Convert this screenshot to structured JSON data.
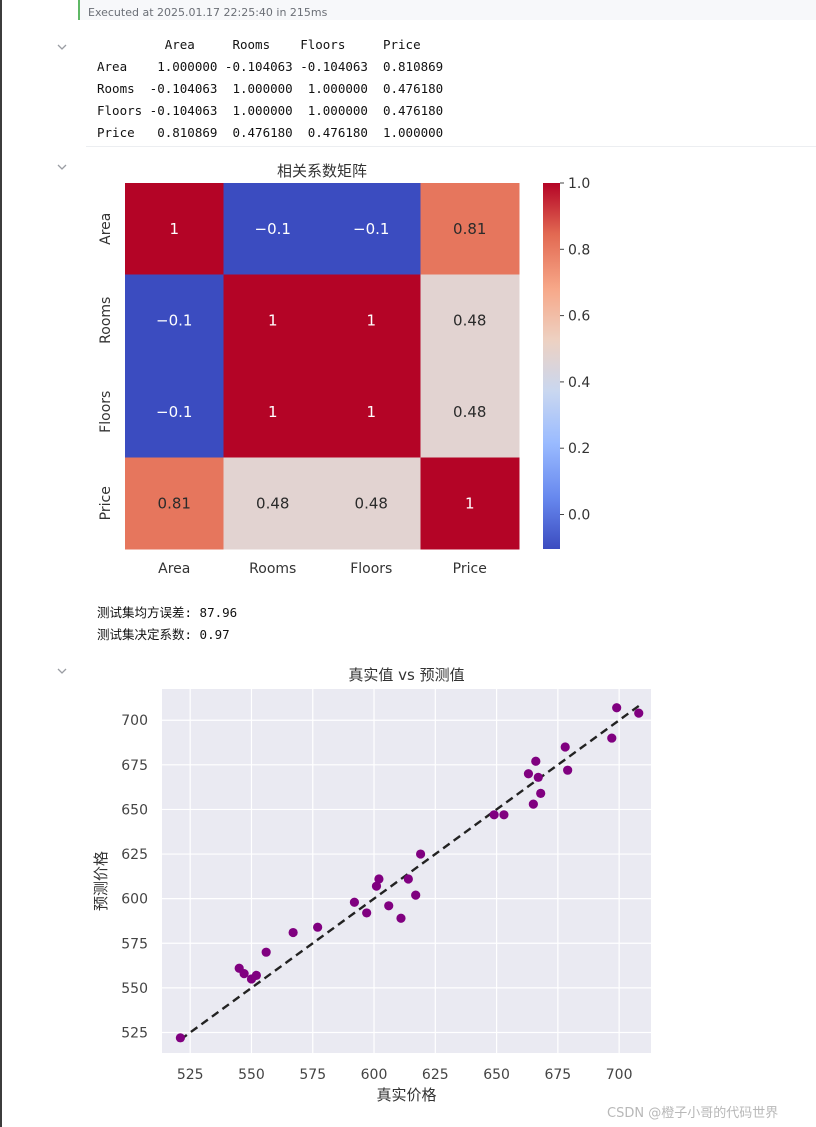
{
  "exec": {
    "text": "Executed at 2025.01.17 22:25:40 in 215ms"
  },
  "dataframe": {
    "header": "         Area     Rooms    Floors     Price",
    "rows": [
      "Area    1.000000 -0.104063 -0.104063  0.810869",
      "Rooms  -0.104063  1.000000  1.000000  0.476180",
      "Floors -0.104063  1.000000  1.000000  0.476180",
      "Price   0.810869  0.476180  0.476180  1.000000"
    ]
  },
  "metrics": {
    "mse": "测试集均方误差: 87.96",
    "r2": "测试集决定系数: 0.97"
  },
  "watermark": "CSDN @橙子小哥的代码世界",
  "colors": {
    "exec_accent": "#5fb865",
    "point": "#800080",
    "plot_bg": "#eaeaf2"
  },
  "chart_data": [
    {
      "type": "heatmap",
      "title": "相关系数矩阵",
      "row_labels": [
        "Area",
        "Rooms",
        "Floors",
        "Price"
      ],
      "col_labels": [
        "Area",
        "Rooms",
        "Floors",
        "Price"
      ],
      "values": [
        [
          1.0,
          -0.104063,
          -0.104063,
          0.810869
        ],
        [
          -0.104063,
          1.0,
          1.0,
          0.47618
        ],
        [
          -0.104063,
          1.0,
          1.0,
          0.47618
        ],
        [
          0.810869,
          0.47618,
          0.47618,
          1.0
        ]
      ],
      "annotations": [
        [
          "1",
          "−0.1",
          "−0.1",
          "0.81"
        ],
        [
          "−0.1",
          "1",
          "1",
          "0.48"
        ],
        [
          "−0.1",
          "1",
          "1",
          "0.48"
        ],
        [
          "0.81",
          "0.48",
          "0.48",
          "1"
        ]
      ],
      "colormap": "coolwarm",
      "vmin": -0.104063,
      "vmax": 1.0,
      "colorbar_ticks": [
        1.0,
        0.8,
        0.6,
        0.4,
        0.2,
        0.0
      ],
      "colorbar_tick_labels": [
        "1.0",
        "0.8",
        "0.6",
        "0.4",
        "0.2",
        "0.0"
      ]
    },
    {
      "type": "scatter",
      "title": "真实值 vs 预测值",
      "xlabel": "真实价格",
      "ylabel": "预测价格",
      "xlim": [
        513.5,
        713
      ],
      "ylim": [
        513.5,
        717.5
      ],
      "xticks": [
        525,
        550,
        575,
        600,
        625,
        650,
        675,
        700
      ],
      "yticks": [
        525,
        550,
        575,
        600,
        625,
        650,
        675,
        700
      ],
      "grid": true,
      "points": [
        {
          "x": 521,
          "y": 522
        },
        {
          "x": 545,
          "y": 561
        },
        {
          "x": 547,
          "y": 558
        },
        {
          "x": 550,
          "y": 555
        },
        {
          "x": 552,
          "y": 557
        },
        {
          "x": 556,
          "y": 570
        },
        {
          "x": 567,
          "y": 581
        },
        {
          "x": 577,
          "y": 584
        },
        {
          "x": 592,
          "y": 598
        },
        {
          "x": 597,
          "y": 592
        },
        {
          "x": 601,
          "y": 607
        },
        {
          "x": 602,
          "y": 611
        },
        {
          "x": 606,
          "y": 596
        },
        {
          "x": 611,
          "y": 589
        },
        {
          "x": 614,
          "y": 611
        },
        {
          "x": 617,
          "y": 602
        },
        {
          "x": 619,
          "y": 625
        },
        {
          "x": 649,
          "y": 647
        },
        {
          "x": 653,
          "y": 647
        },
        {
          "x": 663,
          "y": 670
        },
        {
          "x": 665,
          "y": 653
        },
        {
          "x": 666,
          "y": 677
        },
        {
          "x": 667,
          "y": 668
        },
        {
          "x": 668,
          "y": 659
        },
        {
          "x": 678,
          "y": 685
        },
        {
          "x": 679,
          "y": 672
        },
        {
          "x": 697,
          "y": 690
        },
        {
          "x": 699,
          "y": 707
        },
        {
          "x": 708,
          "y": 704
        }
      ],
      "reference_line": {
        "from": [
          521,
          521
        ],
        "to": [
          708,
          708
        ],
        "style": "dashed",
        "color": "#222222"
      }
    }
  ]
}
